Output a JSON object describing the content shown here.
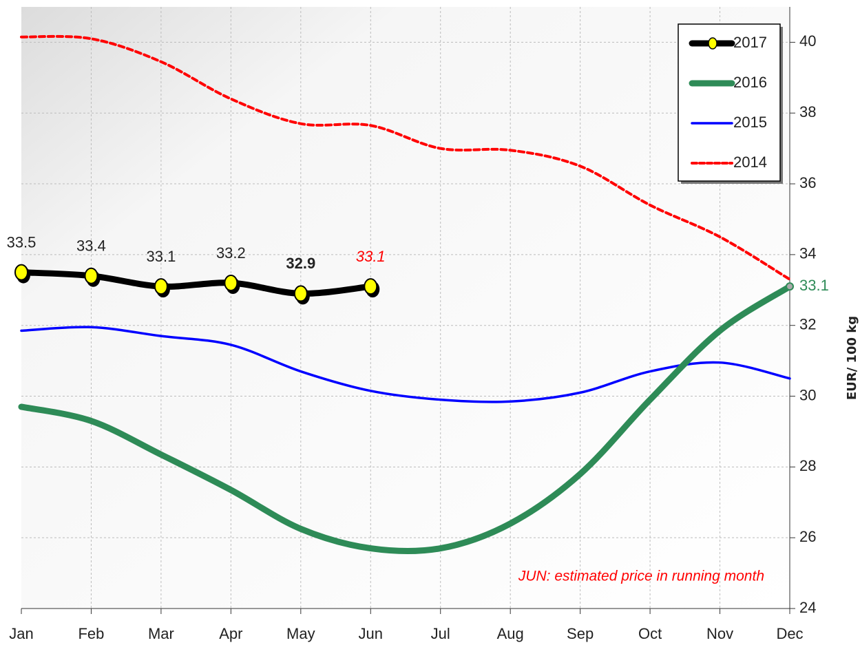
{
  "chart_data": {
    "type": "line",
    "y_axis_label": "EUR/ 100 kg",
    "annotation": "JUN:  estimated price in running month",
    "categories": [
      "Jan",
      "Feb",
      "Mar",
      "Apr",
      "May",
      "Jun",
      "Jul",
      "Aug",
      "Sep",
      "Oct",
      "Nov",
      "Dec"
    ],
    "series": [
      {
        "name": "2017",
        "color": "#000000",
        "marker_color": "#ffff00",
        "style": "solid",
        "values": [
          33.5,
          33.4,
          33.1,
          33.2,
          32.9,
          33.1,
          null,
          null,
          null,
          null,
          null,
          null
        ],
        "value_labels": [
          "33.5",
          "33.4",
          "33.1",
          "33.2",
          "32.9",
          "33.1",
          null,
          null,
          null,
          null,
          null,
          null
        ]
      },
      {
        "name": "2016",
        "color": "#2e8b57",
        "style": "solid",
        "values": [
          29.7,
          29.3,
          28.35,
          27.35,
          26.25,
          25.7,
          25.7,
          26.4,
          27.8,
          29.9,
          31.85,
          33.1
        ],
        "value_labels": [
          null,
          null,
          null,
          null,
          null,
          null,
          null,
          null,
          null,
          null,
          null,
          "33.1"
        ]
      },
      {
        "name": "2015",
        "color": "#0000ff",
        "style": "solid",
        "values": [
          31.85,
          31.95,
          31.7,
          31.45,
          30.7,
          30.15,
          29.9,
          29.85,
          30.1,
          30.7,
          30.95,
          30.5
        ]
      },
      {
        "name": "2014",
        "color": "#ff0000",
        "style": "dashed",
        "values": [
          40.15,
          40.1,
          39.45,
          38.4,
          37.7,
          37.65,
          37.0,
          36.95,
          36.5,
          35.4,
          34.5,
          33.3
        ]
      }
    ],
    "ylim": [
      24,
      41
    ],
    "yticks": [
      24,
      26,
      28,
      30,
      32,
      34,
      36,
      38,
      40
    ],
    "grid": true,
    "legend": "top-right"
  }
}
